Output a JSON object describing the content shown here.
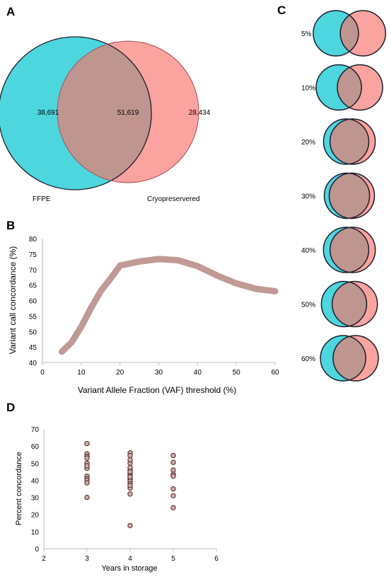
{
  "colors": {
    "ffpe": "#4dd6de",
    "cryo": "#fba39e",
    "overlap": "#bf9590",
    "line": "#c19a95",
    "dots": "#d3a9a4",
    "outline": "#1c1c2b"
  },
  "panel_labels": {
    "a": "A",
    "b": "B",
    "c": "C",
    "d": "D"
  },
  "chart_data": [
    {
      "type": "venn",
      "panel": "A",
      "sets": [
        {
          "name": "FFPE",
          "only": "38,691"
        },
        {
          "name": "Cryopreservered",
          "only": "28,434"
        }
      ],
      "intersection": "51,619"
    },
    {
      "type": "line",
      "panel": "B",
      "x": [
        5,
        7.5,
        10,
        12.5,
        15,
        17.5,
        20,
        25,
        30,
        35,
        40,
        45,
        50,
        55,
        60
      ],
      "y": [
        43.5,
        46.5,
        51.5,
        57.5,
        63,
        67,
        71.3,
        72.6,
        73.4,
        73,
        71.1,
        68.1,
        65.5,
        63.8,
        63
      ],
      "xlabel": "Variant Allele Fraction (VAF) threshold (%)",
      "ylabel": "Variant call concordance (%)",
      "xlim": [
        0,
        60
      ],
      "ylim": [
        40,
        80
      ],
      "xticks": [
        "0",
        "10",
        "20",
        "30",
        "40",
        "50",
        "60"
      ],
      "yticks": [
        "40",
        "45",
        "50",
        "55",
        "60",
        "65",
        "70",
        "75",
        "80"
      ],
      "grid": false
    },
    {
      "type": "venn-series",
      "panel": "C",
      "thresholds": [
        "5%",
        "10%",
        "20%",
        "30%",
        "40%",
        "50%",
        "60%"
      ],
      "concordance": [
        43.5,
        51.5,
        71.3,
        73.4,
        71.1,
        65.5,
        63
      ]
    },
    {
      "type": "scatter",
      "panel": "D",
      "x": [
        3,
        3,
        3,
        3,
        3,
        3,
        3,
        3,
        3,
        3,
        3,
        3,
        4,
        4,
        4,
        4,
        4,
        4,
        4,
        4,
        4,
        4,
        4,
        4,
        4,
        4,
        4,
        4,
        4,
        4,
        5,
        5,
        5,
        5,
        5,
        5,
        5,
        5
      ],
      "y": [
        61.5,
        55.5,
        54,
        50,
        47,
        42.5,
        41,
        40,
        38.5,
        30,
        53,
        48.5,
        56,
        54.5,
        50,
        46,
        44.5,
        43,
        41.5,
        40.5,
        39.5,
        38,
        35.5,
        32,
        13.5,
        45,
        42,
        37,
        52,
        47.5,
        54.5,
        50.5,
        46,
        43.5,
        42.5,
        35,
        31,
        24
      ],
      "xlabel": "Years in storage",
      "ylabel": "Percent concordance",
      "xlim": [
        2,
        6
      ],
      "ylim": [
        0,
        70
      ],
      "xticks": [
        "2",
        "3",
        "4",
        "5",
        "6"
      ],
      "yticks": [
        "0",
        "10",
        "20",
        "30",
        "40",
        "50",
        "60",
        "70"
      ],
      "grid": false
    }
  ]
}
